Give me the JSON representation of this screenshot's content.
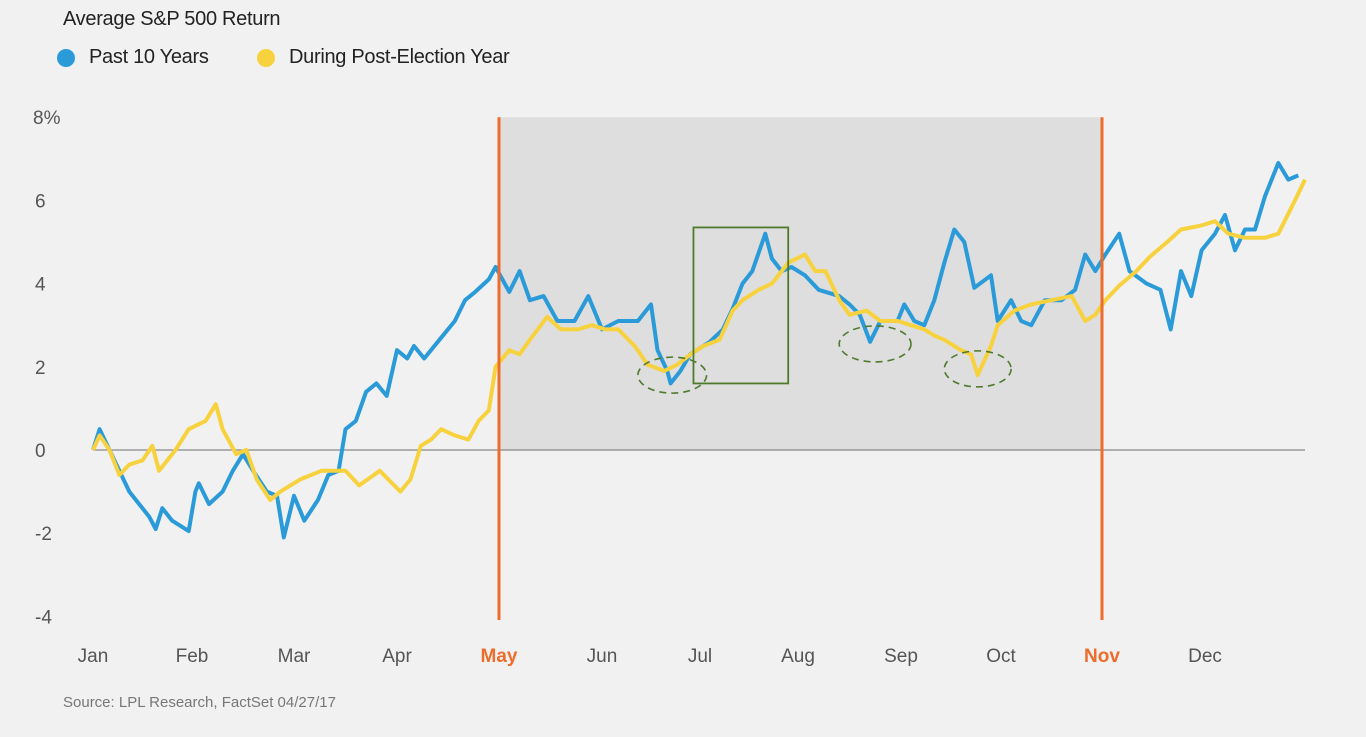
{
  "chart_data": {
    "type": "line",
    "title": "Average S&P 500 Return",
    "source": "Source: LPL Research, FactSet  04/27/17",
    "yticks": [
      "8%",
      "6",
      "4",
      "2",
      "0",
      "-2",
      "-4"
    ],
    "ytick_values": [
      8,
      6,
      4,
      2,
      0,
      -2,
      -4
    ],
    "ylim": [
      -4,
      8
    ],
    "months": [
      "Jan",
      "Feb",
      "Mar",
      "Apr",
      "May",
      "Jun",
      "Jul",
      "Aug",
      "Sep",
      "Oct",
      "Nov",
      "Dec"
    ],
    "highlight_months": [
      "May",
      "Nov"
    ],
    "shaded_range": [
      "May 1",
      "Nov 1"
    ],
    "colors": {
      "past": "#2a9bd8",
      "post": "#f7d23e",
      "highlight": "#ee6c2b",
      "shade": "#dedede",
      "zero": "#888888",
      "annotation": "#4f7a2c"
    },
    "series": [
      {
        "name": "Past 10 Years",
        "color": "#2a9bd8",
        "points": [
          [
            "Jan 1",
            0
          ],
          [
            "Jan 3",
            0.5
          ],
          [
            "Jan 6",
            0
          ],
          [
            "Jan 9",
            -0.5
          ],
          [
            "Jan 12",
            -1.0
          ],
          [
            "Jan 15",
            -1.3
          ],
          [
            "Jan 18",
            -1.6
          ],
          [
            "Jan 20",
            -1.9
          ],
          [
            "Jan 22",
            -1.4
          ],
          [
            "Jan 25",
            -1.7
          ],
          [
            "Jan 30",
            -1.95
          ],
          [
            "Feb 2",
            -1.0
          ],
          [
            "Feb 3",
            -0.8
          ],
          [
            "Feb 6",
            -1.3
          ],
          [
            "Feb 10",
            -1.0
          ],
          [
            "Feb 13",
            -0.5
          ],
          [
            "Feb 16",
            -0.1
          ],
          [
            "Feb 19",
            -0.5
          ],
          [
            "Feb 23",
            -1.0
          ],
          [
            "Feb 26",
            -1.1
          ],
          [
            "Feb 28",
            -2.1
          ],
          [
            "Mar 1",
            -1.1
          ],
          [
            "Mar 4",
            -1.7
          ],
          [
            "Mar 8",
            -1.2
          ],
          [
            "Mar 11",
            -0.6
          ],
          [
            "Mar 14",
            -0.5
          ],
          [
            "Mar 16",
            0.5
          ],
          [
            "Mar 19",
            0.7
          ],
          [
            "Mar 22",
            1.4
          ],
          [
            "Mar 25",
            1.6
          ],
          [
            "Mar 28",
            1.3
          ],
          [
            "Apr 1",
            2.4
          ],
          [
            "Apr 4",
            2.2
          ],
          [
            "Apr 6",
            2.5
          ],
          [
            "Apr 9",
            2.2
          ],
          [
            "Apr 13",
            2.6
          ],
          [
            "Apr 18",
            3.1
          ],
          [
            "Apr 21",
            3.6
          ],
          [
            "Apr 24",
            3.8
          ],
          [
            "Apr 28",
            4.1
          ],
          [
            "Apr 30",
            4.4
          ],
          [
            "May 4",
            3.8
          ],
          [
            "May 7",
            4.3
          ],
          [
            "May 10",
            3.6
          ],
          [
            "May 14",
            3.7
          ],
          [
            "May 18",
            3.1
          ],
          [
            "May 23",
            3.1
          ],
          [
            "May 27",
            3.7
          ],
          [
            "May 31",
            2.9
          ],
          [
            "Jun 6",
            3.1
          ],
          [
            "Jun 12",
            3.1
          ],
          [
            "Jun 16",
            3.5
          ],
          [
            "Jun 18",
            2.4
          ],
          [
            "Jun 21",
            1.9
          ],
          [
            "Jun 22",
            1.6
          ],
          [
            "Jun 25",
            1.9
          ],
          [
            "Jun 28",
            2.3
          ],
          [
            "Jul 4",
            2.6
          ],
          [
            "Jul 8",
            2.9
          ],
          [
            "Jul 11",
            3.4
          ],
          [
            "Jul 14",
            4.0
          ],
          [
            "Jul 17",
            4.3
          ],
          [
            "Jul 21",
            5.2
          ],
          [
            "Jul 23",
            4.6
          ],
          [
            "Jul 26",
            4.3
          ],
          [
            "Jul 29",
            4.4
          ],
          [
            "Aug 3",
            4.2
          ],
          [
            "Aug 7",
            3.85
          ],
          [
            "Aug 13",
            3.7
          ],
          [
            "Aug 16",
            3.5
          ],
          [
            "Aug 19",
            3.25
          ],
          [
            "Aug 22",
            2.6
          ],
          [
            "Aug 25",
            3.1
          ],
          [
            "Aug 30",
            3.1
          ],
          [
            "Sep 2",
            3.5
          ],
          [
            "Sep 5",
            3.1
          ],
          [
            "Sep 8",
            3.0
          ],
          [
            "Sep 11",
            3.6
          ],
          [
            "Sep 14",
            4.5
          ],
          [
            "Sep 17",
            5.3
          ],
          [
            "Sep 20",
            5.0
          ],
          [
            "Sep 23",
            3.9
          ],
          [
            "Sep 28",
            4.2
          ],
          [
            "Sep 30",
            3.1
          ],
          [
            "Oct 4",
            3.6
          ],
          [
            "Oct 7",
            3.1
          ],
          [
            "Oct 10",
            3.0
          ],
          [
            "Oct 14",
            3.6
          ],
          [
            "Oct 19",
            3.6
          ],
          [
            "Oct 23",
            3.85
          ],
          [
            "Oct 26",
            4.7
          ],
          [
            "Oct 29",
            4.3
          ],
          [
            "Nov 2",
            4.7
          ],
          [
            "Nov 6",
            5.2
          ],
          [
            "Nov 9",
            4.3
          ],
          [
            "Nov 14",
            4.0
          ],
          [
            "Nov 18",
            3.85
          ],
          [
            "Nov 21",
            2.9
          ],
          [
            "Nov 24",
            4.3
          ],
          [
            "Nov 27",
            3.7
          ],
          [
            "Nov 30",
            4.8
          ],
          [
            "Dec 4",
            5.2
          ],
          [
            "Dec 7",
            5.65
          ],
          [
            "Dec 10",
            4.8
          ],
          [
            "Dec 13",
            5.3
          ],
          [
            "Dec 16",
            5.3
          ],
          [
            "Dec 19",
            6.1
          ],
          [
            "Dec 23",
            6.9
          ],
          [
            "Dec 26",
            6.5
          ],
          [
            "Dec 29",
            6.6
          ]
        ]
      },
      {
        "name": "During Post-Election Year",
        "color": "#f7d23e",
        "points": [
          [
            "Jan 1",
            0
          ],
          [
            "Jan 3",
            0.35
          ],
          [
            "Jan 6",
            0
          ],
          [
            "Jan 9",
            -0.6
          ],
          [
            "Jan 12",
            -0.35
          ],
          [
            "Jan 16",
            -0.25
          ],
          [
            "Jan 19",
            0.1
          ],
          [
            "Jan 21",
            -0.5
          ],
          [
            "Jan 26",
            0
          ],
          [
            "Jan 30",
            0.5
          ],
          [
            "Feb 5",
            0.7
          ],
          [
            "Feb 8",
            1.1
          ],
          [
            "Feb 10",
            0.5
          ],
          [
            "Feb 14",
            -0.1
          ],
          [
            "Feb 17",
            0
          ],
          [
            "Feb 20",
            -0.7
          ],
          [
            "Feb 24",
            -1.2
          ],
          [
            "Feb 27",
            -1.0
          ],
          [
            "Mar 3",
            -0.7
          ],
          [
            "Mar 9",
            -0.5
          ],
          [
            "Mar 16",
            -0.5
          ],
          [
            "Mar 20",
            -0.85
          ],
          [
            "Mar 26",
            -0.5
          ],
          [
            "Apr 2",
            -1.0
          ],
          [
            "Apr 5",
            -0.7
          ],
          [
            "Apr 8",
            0.1
          ],
          [
            "Apr 11",
            0.25
          ],
          [
            "Apr 14",
            0.5
          ],
          [
            "Apr 18",
            0.35
          ],
          [
            "Apr 22",
            0.25
          ],
          [
            "Apr 25",
            0.7
          ],
          [
            "Apr 28",
            0.95
          ],
          [
            "Apr 30",
            2.0
          ],
          [
            "May 4",
            2.4
          ],
          [
            "May 7",
            2.3
          ],
          [
            "May 10",
            2.65
          ],
          [
            "May 15",
            3.2
          ],
          [
            "May 19",
            2.9
          ],
          [
            "May 24",
            2.9
          ],
          [
            "May 28",
            3.0
          ],
          [
            "Jun 2",
            2.9
          ],
          [
            "Jun 6",
            2.9
          ],
          [
            "Jun 11",
            2.5
          ],
          [
            "Jun 15",
            2.05
          ],
          [
            "Jun 20",
            1.9
          ],
          [
            "Jun 24",
            2.05
          ],
          [
            "Jun 29",
            2.35
          ],
          [
            "Jul 2",
            2.5
          ],
          [
            "Jul 7",
            2.65
          ],
          [
            "Jul 11",
            3.35
          ],
          [
            "Jul 14",
            3.6
          ],
          [
            "Jul 19",
            3.85
          ],
          [
            "Jul 23",
            4.0
          ],
          [
            "Jul 28",
            4.5
          ],
          [
            "Aug 3",
            4.7
          ],
          [
            "Aug 6",
            4.3
          ],
          [
            "Aug 9",
            4.3
          ],
          [
            "Aug 13",
            3.6
          ],
          [
            "Aug 16",
            3.25
          ],
          [
            "Aug 21",
            3.35
          ],
          [
            "Aug 25",
            3.1
          ],
          [
            "Aug 30",
            3.1
          ],
          [
            "Sep 4",
            3.0
          ],
          [
            "Sep 8",
            2.9
          ],
          [
            "Sep 11",
            2.75
          ],
          [
            "Sep 14",
            2.65
          ],
          [
            "Sep 19",
            2.4
          ],
          [
            "Sep 22",
            2.3
          ],
          [
            "Sep 24",
            1.8
          ],
          [
            "Sep 28",
            2.5
          ],
          [
            "Sep 30",
            3.0
          ],
          [
            "Oct 5",
            3.35
          ],
          [
            "Oct 10",
            3.5
          ],
          [
            "Oct 16",
            3.6
          ],
          [
            "Oct 22",
            3.7
          ],
          [
            "Oct 26",
            3.1
          ],
          [
            "Oct 29",
            3.25
          ],
          [
            "Nov 2",
            3.6
          ],
          [
            "Nov 6",
            3.95
          ],
          [
            "Nov 11",
            4.3
          ],
          [
            "Nov 15",
            4.65
          ],
          [
            "Nov 20",
            5.0
          ],
          [
            "Nov 24",
            5.3
          ],
          [
            "Nov 30",
            5.4
          ],
          [
            "Dec 4",
            5.5
          ],
          [
            "Dec 8",
            5.2
          ],
          [
            "Dec 13",
            5.1
          ],
          [
            "Dec 19",
            5.1
          ],
          [
            "Dec 23",
            5.2
          ],
          [
            "Dec 28",
            6.0
          ],
          [
            "Dec 31",
            6.5
          ]
        ]
      }
    ],
    "annotations": {
      "box": {
        "from": "Jun 29",
        "to": "Jul 28",
        "ymin": 1.6,
        "ymax": 5.35
      },
      "ellipses": [
        {
          "from": "Jun 12",
          "to": "Jul 3",
          "center": 1.8
        },
        {
          "from": "Aug 13",
          "to": "Sep 4",
          "center": 2.55
        },
        {
          "from": "Sep 14",
          "to": "Oct 4",
          "center": 1.95
        }
      ]
    }
  }
}
